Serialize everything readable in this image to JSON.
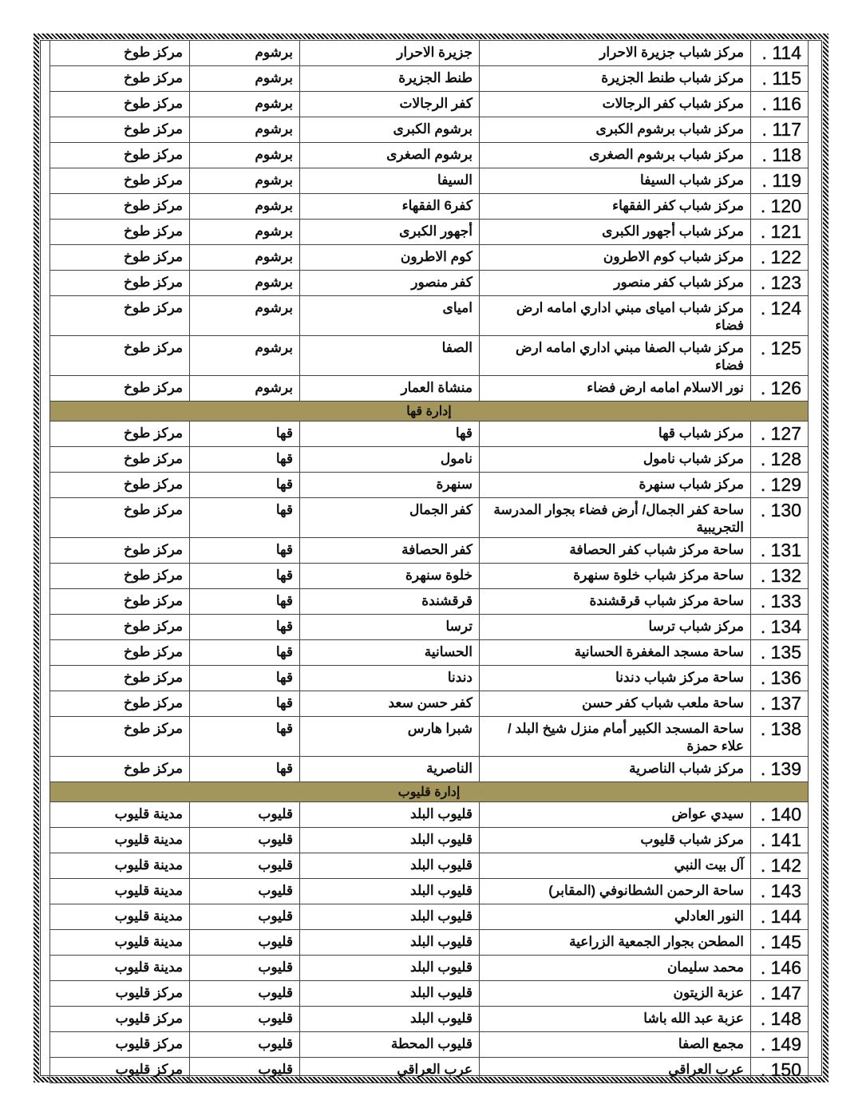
{
  "sections": [
    {
      "title": "",
      "rows": [
        {
          "no": "114",
          "name": "مركز شباب جزيرة الاحرار",
          "village": "جزيرة الاحرار",
          "unit": "برشوم",
          "center": "مركز طوخ"
        },
        {
          "no": "115",
          "name": "مركز شباب طنط الجزيرة",
          "village": "طنط الجزيرة",
          "unit": "برشوم",
          "center": "مركز طوخ"
        },
        {
          "no": "116",
          "name": "مركز شباب كفر الرجالات",
          "village": "كفر الرجالات",
          "unit": "برشوم",
          "center": "مركز طوخ"
        },
        {
          "no": "117",
          "name": "مركز شباب برشوم الكبرى",
          "village": "برشوم الكبرى",
          "unit": "برشوم",
          "center": "مركز طوخ"
        },
        {
          "no": "118",
          "name": "مركز شباب برشوم الصغرى",
          "village": "برشوم الصغرى",
          "unit": "برشوم",
          "center": "مركز طوخ"
        },
        {
          "no": "119",
          "name": "مركز شباب السيفا",
          "village": "السيفا",
          "unit": "برشوم",
          "center": "مركز طوخ"
        },
        {
          "no": "120",
          "name": "مركز شباب كفر الفقهاء",
          "village": "كفر6 الفقهاء",
          "unit": "برشوم",
          "center": "مركز طوخ"
        },
        {
          "no": "121",
          "name": "مركز شباب أجهور الكبرى",
          "village": "أجهور الكبرى",
          "unit": "برشوم",
          "center": "مركز طوخ"
        },
        {
          "no": "122",
          "name": "مركز شباب كوم الاطرون",
          "village": "كوم الاطرون",
          "unit": "برشوم",
          "center": "مركز طوخ"
        },
        {
          "no": "123",
          "name": "مركز شباب كفر منصور",
          "village": "كفر منصور",
          "unit": "برشوم",
          "center": "مركز طوخ"
        },
        {
          "no": "124",
          "name": "مركز شباب امياى مبني اداري امامه ارض فضاء",
          "village": "امياى",
          "unit": "برشوم",
          "center": "مركز طوخ",
          "tall": true
        },
        {
          "no": "125",
          "name": "مركز شباب الصفا مبني اداري امامه ارض فضاء",
          "village": "الصفا",
          "unit": "برشوم",
          "center": "مركز طوخ",
          "tall": true
        },
        {
          "no": "126",
          "name": "نور الاسلام امامه ارض فضاء",
          "village": "منشاة العمار",
          "unit": "برشوم",
          "center": "مركز طوخ"
        }
      ]
    },
    {
      "title": "إدارة قها",
      "rows": [
        {
          "no": "127",
          "name": "مركز شباب قها",
          "village": "قها",
          "unit": "قها",
          "center": "مركز طوخ"
        },
        {
          "no": "128",
          "name": "مركز شباب نامول",
          "village": "نامول",
          "unit": "قها",
          "center": "مركز طوخ"
        },
        {
          "no": "129",
          "name": "مركز شباب سنهرة",
          "village": "سنهرة",
          "unit": "قها",
          "center": "مركز طوخ"
        },
        {
          "no": "130",
          "name": "ساحة كفر الجمال/ أرض فضاء   بجوار المدرسة التجريبية",
          "village": "كفر الجمال",
          "unit": "قها",
          "center": "مركز طوخ",
          "tall": true
        },
        {
          "no": "131",
          "name": "ساحة مركز شباب كفر الحصافة",
          "village": "كفر الحصافة",
          "unit": "قها",
          "center": "مركز طوخ"
        },
        {
          "no": "132",
          "name": "ساحة مركز شباب خلوة سنهرة",
          "village": "خلوة سنهرة",
          "unit": "قها",
          "center": "مركز طوخ"
        },
        {
          "no": "133",
          "name": "ساحة مركز شباب قرقشندة",
          "village": "قرقشندة",
          "unit": "قها",
          "center": "مركز طوخ"
        },
        {
          "no": "134",
          "name": "مركز شباب ترسا",
          "village": "ترسا",
          "unit": "قها",
          "center": "مركز طوخ"
        },
        {
          "no": "135",
          "name": "ساحة مسجد المغفرة الحسانية",
          "village": "الحسانية",
          "unit": "قها",
          "center": "مركز طوخ"
        },
        {
          "no": "136",
          "name": "ساحة مركز شباب دندنا",
          "village": "دندنا",
          "unit": "قها",
          "center": "مركز طوخ"
        },
        {
          "no": "137",
          "name": "ساحة ملعب شباب كفر حسن",
          "village": "كفر حسن سعد",
          "unit": "قها",
          "center": "مركز طوخ"
        },
        {
          "no": "138",
          "name": "ساحة المسجد الكبير أمام منزل شيخ البلد / علاء حمزة",
          "village": "شبرا هارس",
          "unit": "قها",
          "center": "مركز طوخ",
          "tall": true
        },
        {
          "no": "139",
          "name": "مركز شباب الناصرية",
          "village": "الناصرية",
          "unit": "قها",
          "center": "مركز طوخ"
        }
      ]
    },
    {
      "title": "إدارة قليوب",
      "rows": [
        {
          "no": "140",
          "name": "سيدي عواض",
          "village": "قليوب البلد",
          "unit": "قليوب",
          "center": "مدينة قليوب"
        },
        {
          "no": "141",
          "name": "مركز شباب قليوب",
          "village": "قليوب البلد",
          "unit": "قليوب",
          "center": "مدينة قليوب"
        },
        {
          "no": "142",
          "name": "آل بيت النبي",
          "village": "قليوب البلد",
          "unit": "قليوب",
          "center": "مدينة قليوب"
        },
        {
          "no": "143",
          "name": "ساحة الرحمن الشطانوفي (المقابر)",
          "village": "قليوب البلد",
          "unit": "قليوب",
          "center": "مدينة قليوب"
        },
        {
          "no": "144",
          "name": "النور العادلي",
          "village": "قليوب البلد",
          "unit": "قليوب",
          "center": "مدينة قليوب"
        },
        {
          "no": "145",
          "name": "المطحن بجوار الجمعية الزراعية",
          "village": "قليوب البلد",
          "unit": "قليوب",
          "center": "مدينة قليوب"
        },
        {
          "no": "146",
          "name": "محمد سليمان",
          "village": "قليوب البلد",
          "unit": "قليوب",
          "center": "مدينة قليوب"
        },
        {
          "no": "147",
          "name": "عزبة الزيتون",
          "village": "قليوب البلد",
          "unit": "قليوب",
          "center": "مركز قليوب"
        },
        {
          "no": "148",
          "name": "عزبة عبد الله باشا",
          "village": "قليوب البلد",
          "unit": "قليوب",
          "center": "مركز قليوب"
        },
        {
          "no": "149",
          "name": "مجمع الصفا",
          "village": "قليوب المحطة",
          "unit": "قليوب",
          "center": "مركز قليوب"
        },
        {
          "no": "150",
          "name": "عرب العراقي",
          "village": "عرب العراقي",
          "unit": "قليوب",
          "center": "مركز قليوب"
        }
      ]
    }
  ],
  "colors": {
    "section_header_bg": "#a4965a",
    "border": "#444444"
  }
}
